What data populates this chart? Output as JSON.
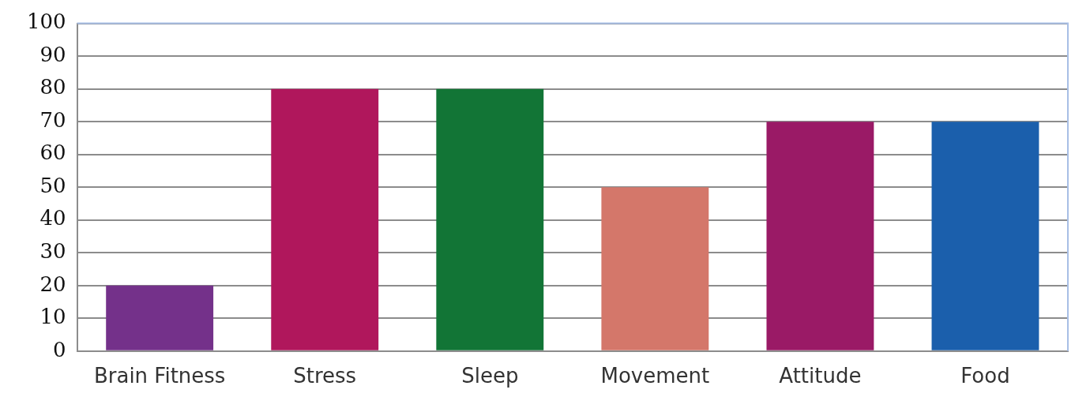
{
  "chart_data": {
    "type": "bar",
    "categories": [
      "Brain Fitness",
      "Stress",
      "Sleep",
      "Movement",
      "Attitude",
      "Food"
    ],
    "values": [
      20,
      80,
      80,
      50,
      70,
      70
    ],
    "colors": [
      "#74318a",
      "#b0175c",
      "#127536",
      "#d4776a",
      "#9a1a66",
      "#1b5fac"
    ],
    "ylim": [
      0,
      100
    ],
    "yticks": [
      0,
      10,
      20,
      30,
      40,
      50,
      60,
      70,
      80,
      90,
      100
    ],
    "grid": "y",
    "legend": false
  }
}
